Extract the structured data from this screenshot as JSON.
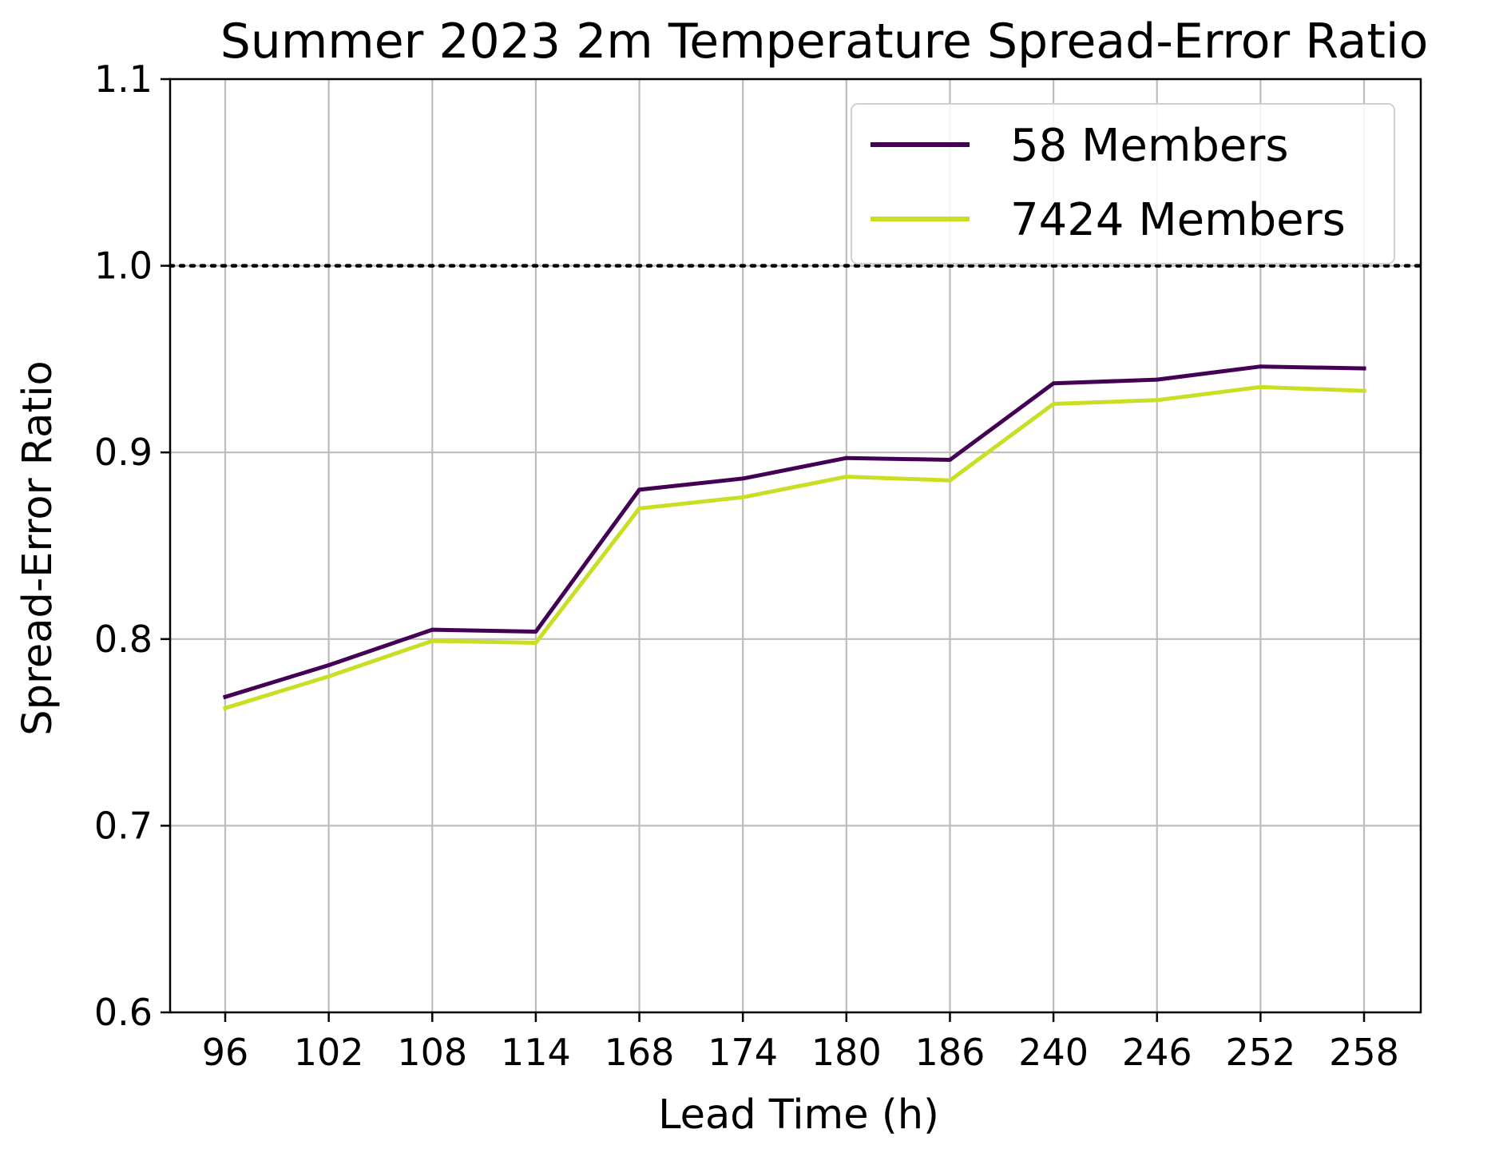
{
  "chart_data": {
    "type": "line",
    "title": "Summer 2023 2m Temperature Spread-Error Ratio",
    "xlabel": "Lead Time (h)",
    "ylabel": "Spread-Error Ratio",
    "categories": [
      "96",
      "102",
      "108",
      "114",
      "168",
      "174",
      "180",
      "186",
      "240",
      "246",
      "252",
      "258"
    ],
    "ylim": [
      0.6,
      1.1
    ],
    "yticks": [
      "0.6",
      "0.7",
      "0.8",
      "0.9",
      "1.0",
      "1.1"
    ],
    "grid": true,
    "legend_position": "top-right",
    "reference_line": {
      "y": 1.0,
      "style": "dotted",
      "color": "#000000"
    },
    "series": [
      {
        "name": "58 Members",
        "color": "#440154",
        "values": [
          0.769,
          0.786,
          0.805,
          0.804,
          0.88,
          0.886,
          0.897,
          0.896,
          0.937,
          0.939,
          0.946,
          0.945
        ]
      },
      {
        "name": "7424 Members",
        "color": "#c8df24",
        "values": [
          0.763,
          0.78,
          0.799,
          0.798,
          0.87,
          0.876,
          0.887,
          0.885,
          0.926,
          0.928,
          0.935,
          0.933
        ]
      }
    ]
  }
}
